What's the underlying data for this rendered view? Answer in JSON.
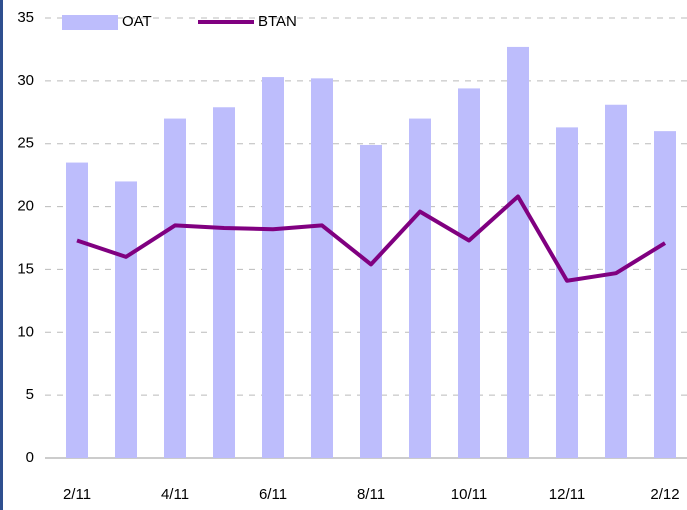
{
  "chart_data": {
    "type": "bar-line",
    "categories": [
      "2/11",
      null,
      "4/11",
      null,
      "6/11",
      null,
      "8/11",
      null,
      "10/11",
      null,
      "12/11",
      null,
      "2/12"
    ],
    "series": [
      {
        "name": "OAT",
        "type": "bar",
        "color": "#bdbdfc",
        "values": [
          23.5,
          22,
          27,
          27.9,
          30.3,
          30.2,
          24.9,
          27,
          29.4,
          32.7,
          26.3,
          28.1,
          26
        ]
      },
      {
        "name": "BTAN",
        "type": "line",
        "color": "#800080",
        "values": [
          17.3,
          16,
          18.5,
          18.3,
          18.2,
          18.5,
          15.4,
          19.6,
          17.3,
          20.8,
          14.1,
          14.7,
          17.1
        ]
      }
    ],
    "ylim": [
      0,
      35
    ],
    "yticks": [
      0,
      5,
      10,
      15,
      20,
      25,
      30,
      35
    ],
    "grid": true
  }
}
